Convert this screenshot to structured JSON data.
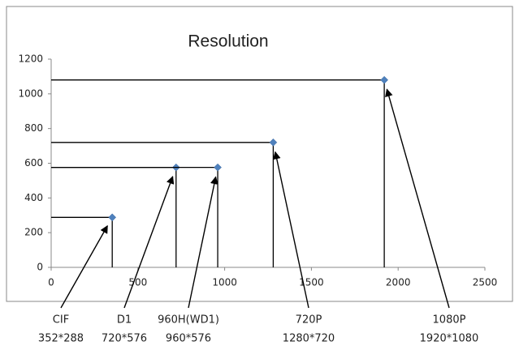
{
  "chart_data": {
    "type": "scatter",
    "title": "Resolution",
    "x": [
      352,
      720,
      960,
      1280,
      1920
    ],
    "values": [
      288,
      576,
      576,
      720,
      1080
    ],
    "color": "#4f81bd",
    "xlim": [
      0,
      2500
    ],
    "xticks": [
      0,
      500,
      1000,
      1500,
      2000,
      2500
    ],
    "ylim": [
      0,
      1200
    ],
    "yticks": [
      0,
      200,
      400,
      600,
      800,
      1000,
      1200
    ],
    "grid": false,
    "drop_lines": true,
    "annotations": [
      {
        "text": "CIF",
        "detail": "352*288"
      },
      {
        "text": "D1",
        "detail": "720*576"
      },
      {
        "text": "960H(WD1)",
        "detail": "960*576"
      },
      {
        "text": "720P",
        "detail": "1280*720"
      },
      {
        "text": "1080P",
        "detail": "1920*1080"
      }
    ]
  }
}
